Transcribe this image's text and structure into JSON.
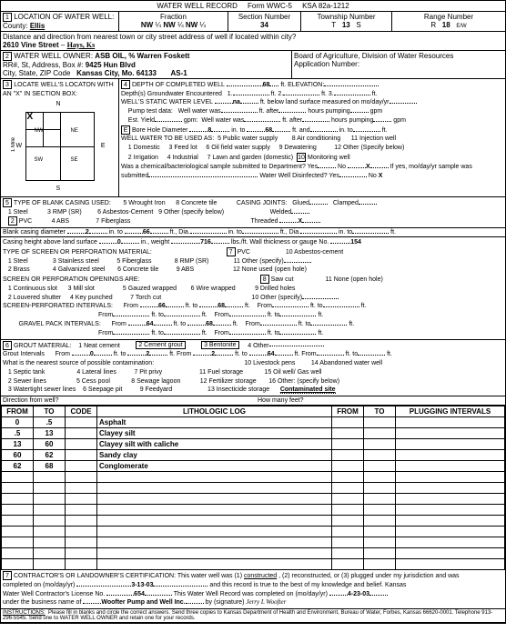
{
  "header": {
    "title": "WATER WELL RECORD",
    "form": "Form WWC-5",
    "ksa": "KSA 82a-1212"
  },
  "sec1": {
    "label": "LOCATION OF WATER WELL:",
    "county_lbl": "County:",
    "county": "Ellis",
    "fraction_lbl": "Fraction",
    "frac1a": "NW",
    "frac1b": "¼",
    "frac2a": "NW",
    "frac2b": "¼",
    "frac3a": "NW",
    "frac3b": "¼",
    "section_lbl": "Section Number",
    "section": "34",
    "township_lbl": "Township Number",
    "township_t": "T",
    "township": "13",
    "township_s": "S",
    "range_lbl": "Range Number",
    "range_r": "R",
    "range": "18",
    "range_ew": "E/W",
    "dist_lbl": "Distance and direction from nearest town or city street address of well if located within city?",
    "addr": "2610 Vine Street",
    "addr2": "Hays, Ks"
  },
  "sec2": {
    "label": "WATER WELL OWNER:",
    "owner": "ASB OIL, % Warren Foskett",
    "rr_lbl": "RR#, St, Address, Box #:",
    "rr": "9425 Hun Blvd",
    "city_lbl": "City, State, ZIP Code",
    "city": "Kansas City, Mo.  64133",
    "as": "AS-1",
    "board": "Board of Agriculture, Division of Water Resources",
    "app_lbl": "Application Number:"
  },
  "sec3": {
    "label": "LOCATE WELL'S LOCATON WITH AN \"X\" IN SECTION BOX:",
    "n": "N",
    "s": "S",
    "e": "E",
    "w": "W",
    "nw": "NW",
    "ne": "NE",
    "sw": "SW",
    "se": "SE",
    "mile": "1 Mile"
  },
  "sec4": {
    "label": "DEPTH OF COMPLETED WELL",
    "depth": "68",
    "elev_lbl": "ft. ELEVATION:",
    "depths_lbl": "Depth(s) Groundwater Encountered",
    "d1": "1.",
    "d2": "ft. 2.",
    "d3": "ft. 3.",
    "d4": "ft.",
    "static_lbl": "WELL'S STATIC WATER LEVEL",
    "static": "na",
    "static2": "ft. below land surface measured on mo/day/yr",
    "pump_lbl": "Pump test data:",
    "pump1": "Well water was",
    "pump2": "ft. after",
    "pump3": "hours pumping",
    "pump4": "gpm",
    "est_lbl": "Est. Yield",
    "est1": "gpm:",
    "est2": "Well water was",
    "est3": "ft. after",
    "est4": "hours pumping",
    "est5": "gpm",
    "bore_lbl": "Bore Hole Diameter",
    "bore": "8",
    "bore2": "in. to",
    "bore3": "68",
    "bore4": "ft. and",
    "bore5": "in. to",
    "bore6": "ft.",
    "use_lbl": "WELL WATER TO BE USED AS:",
    "u1": "1  Domestic",
    "u2": "2  Irrigation",
    "u3": "3  Feed lot",
    "u4": "4  Industrial",
    "u5": "5  Public water supply",
    "u6": "6  Oil field water supply",
    "u7": "7  Lawn and garden (domestic)",
    "u8": "8  Air conditioning",
    "u9": "9  Dewatering",
    "u10": "10",
    "u10b": "Monitoring well",
    "u11": "11  Injection well",
    "u12": "12  Other (Specify below)",
    "chem_lbl": "Was a chemical/bacteriological sample submitted to Department?  Yes",
    "chem_no": "No",
    "chem_x": "X",
    "chem2": "If yes, mo/day/yr sample was",
    "sub_lbl": "submitted",
    "disinf_lbl": "Water Well Disinfected?  Yes",
    "disinf_no": "No",
    "disinf_x": "X"
  },
  "sec5": {
    "label": "TYPE OF BLANK CASING USED:",
    "c1": "1  Steel",
    "c2": "2",
    "c2b": "PVC",
    "c3": "3  RMP (SR)",
    "c4": "4  ABS",
    "c5": "5  Wrought Iron",
    "c6": "6  Asbestos-Cement",
    "c7": "7  Fiberglass",
    "c8": "8  Concrete tile",
    "c9": "9  Other (specify below)",
    "joints_lbl": "CASING JOINTS:",
    "j1": "Glued",
    "j2": "Clamped",
    "j3": "Welded",
    "j4": "Threaded",
    "jx": "X",
    "bcd_lbl": "Blank casing diameter",
    "bcd": "2",
    "bcd2": "in. to",
    "bcd3": "66",
    "bcd4": "ft., Dia.",
    "bcd5": "in. to",
    "bcd6": "ft., Dia.",
    "bcd7": "in. to",
    "bcd8": "ft.",
    "cht_lbl": "Casing height above land surface",
    "cht": "0",
    "cht2": "in., weight",
    "cht3": ".716",
    "cht4": "lbs./ft.  Wall thickness or gauge No.",
    "cht5": ".154",
    "perf_lbl": "TYPE OF SCREEN OR PERFORATION MATERIAL:",
    "p1": "1  Steel",
    "p2": "2  Brass",
    "p3": "3  Stainless steel",
    "p4": "4  Galvanized steel",
    "p5": "5  Fiberglass",
    "p6": "6  Concrete tile",
    "p7": "7",
    "p7b": "PVC",
    "p8": "8  RMP (SR)",
    "p9": "9  ABS",
    "p10": "10  Asbestos-cement",
    "p11": "11  Other (specify)",
    "p12": "12  None used (open hole)",
    "open_lbl": "SCREEN OR PERFORATION OPENINGS ARE:",
    "o1": "1  Continuous slot",
    "o2": "2  Louvered shutter",
    "o3": "3  Mill slot",
    "o4": "4  Key punched",
    "o5": "5  Gauzed wrapped",
    "o6": "6  Wire wrapped",
    "o7": "7  Torch cut",
    "o8": "8",
    "o8b": "Saw cut",
    "o9": "9  Drilled holes",
    "o10": "10  Other (specify)",
    "o11": "11  None (open hole)",
    "spi_lbl": "SCREEN-PERFORATED INTERVALS:",
    "from_lbl": "From",
    "to_lbl": "ft. to",
    "ft_lbl": "ft.",
    "spi1": "66",
    "spi2": "68",
    "gpi_lbl": "GRAVEL PACK INTERVALS:",
    "gpi1": "64",
    "gpi2": "68"
  },
  "sec6": {
    "label": "GROUT MATERIAL:",
    "g1": "1  Neat cement",
    "g2": "2  Cement grout",
    "g3": "3  Bentonite",
    "g4": "4  Other",
    "gi_lbl": "Grout Intervals",
    "gi_from": "From",
    "gi0": "0",
    "gi_to": "ft. to",
    "gi2": "2",
    "gi_fr2": "ft.   From",
    "gi2a": "2",
    "gi_to2": "ft. to",
    "gi64": "64",
    "gi_end": "ft.  From",
    "gi_end2": "ft. to",
    "gi_end3": "ft.",
    "contam_lbl": "What is the nearest source of possible contamination:",
    "c1": "1   Septic tank",
    "c2": "2   Sewer lines",
    "c3": "3   Watertight sewer lines",
    "c4": "4   Lateral lines",
    "c5": "5   Cess pool",
    "c6": "6   Seepage pit",
    "c7": "7   Pit privy",
    "c8": "8   Sewage lagoon",
    "c9": "9   Feedyard",
    "c10": "10   Livestock pens",
    "c11": "11   Fuel storage",
    "c12": "12   Fertilizer storage",
    "c13": "13   Insecticide storage",
    "c14": "14   Abandoned water well",
    "c15": "15   Oil well/ Gas well",
    "c16": "16   Other: (specify below)",
    "c16v": "Contaminated site",
    "dir_lbl": "Direction from well?",
    "feet_lbl": "How many feet?"
  },
  "log": {
    "h_from": "FROM",
    "h_to": "TO",
    "h_code": "CODE",
    "h_lith": "LITHOLOGIC LOG",
    "h_from2": "FROM",
    "h_to2": "TO",
    "h_plug": "PLUGGING INTERVALS",
    "rows": [
      {
        "f": "0",
        "t": ".5",
        "l": "Asphalt"
      },
      {
        "f": ".5",
        "t": "13",
        "l": "Clayey silt"
      },
      {
        "f": "13",
        "t": "60",
        "l": "Clayey silt with caliche"
      },
      {
        "f": "60",
        "t": "62",
        "l": "Sandy clay"
      },
      {
        "f": "62",
        "t": "68",
        "l": "Conglomerate"
      },
      {
        "f": "",
        "t": "",
        "l": ""
      },
      {
        "f": "",
        "t": "",
        "l": ""
      },
      {
        "f": "",
        "t": "",
        "l": ""
      },
      {
        "f": "",
        "t": "",
        "l": ""
      },
      {
        "f": "",
        "t": "",
        "l": ""
      },
      {
        "f": "",
        "t": "",
        "l": ""
      },
      {
        "f": "",
        "t": "",
        "l": ""
      },
      {
        "f": "",
        "t": "",
        "l": ""
      },
      {
        "f": "",
        "t": "",
        "l": ""
      }
    ]
  },
  "sec7": {
    "label": "CONTRACTOR'S OR LANDOWNER'S CERTIFICATION:  This water well was (1)",
    "u1": "constructed",
    "l2": ", (2) reconstructed, or (3) plugged under my jurisdiction and was",
    "comp_lbl": "completed on (mo/day/yr)",
    "comp": "3-13-03",
    "comp2": "and this record is true to the best of my knowledge and belief.  Kansas",
    "lic_lbl": "Water Well Contractor's License No.",
    "lic": "654",
    "lic2": "This Water Well Record was completed on (mo/day/yr)",
    "lic3": "4-23-03",
    "bus_lbl": "under the business name of",
    "bus": "Woofter Pump and Well Inc.",
    "sig_lbl": "by (signature)",
    "instr_lbl": "INSTRUCTIONS:",
    "instr": "Please fill in blanks and circle the correct answers.  Send three copies to Kansas Department of Health and Environment, Bureau of Water, Forbes, Kansas 66620-0001.  Telephone  913-296-5545.  Send one to WATER WELL OWNER and retain one for your records."
  }
}
